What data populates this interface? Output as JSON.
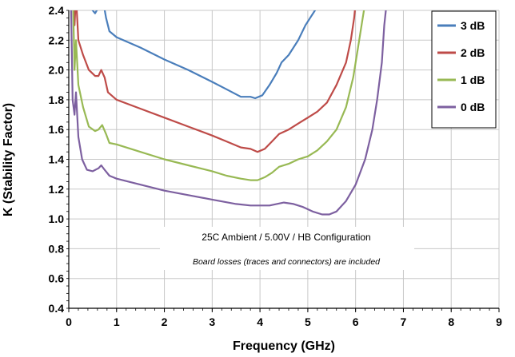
{
  "chart_data": {
    "type": "line",
    "title": "",
    "xlabel": "Frequency (GHz)",
    "ylabel": "K (Stability Factor)",
    "xlim": [
      0,
      9
    ],
    "ylim": [
      0.4,
      2.4
    ],
    "x_ticks": [
      0,
      1,
      2,
      3,
      4,
      5,
      6,
      7,
      8,
      9
    ],
    "y_ticks": [
      0.4,
      0.6,
      0.8,
      1.0,
      1.2,
      1.4,
      1.6,
      1.8,
      2.0,
      2.2,
      2.4
    ],
    "y_tick_labels": [
      "0.4",
      "0.6",
      "0.8",
      "1.0",
      "1.2",
      "1.4",
      "1.6",
      "1.8",
      "2.0",
      "2.2",
      "2.4"
    ],
    "grid": true,
    "legend_position": "top-right",
    "annotations": [
      "25C Ambient / 5.00V / HB Configuration",
      "Board losses (traces and connectors) are included"
    ],
    "series": [
      {
        "name": "3 dB",
        "color": "#4a7ebb",
        "points": [
          [
            0.05,
            2.4
          ],
          [
            0.08,
            2.6
          ],
          [
            0.12,
            2.45
          ],
          [
            0.15,
            2.6
          ],
          [
            0.2,
            2.5
          ],
          [
            0.3,
            2.45
          ],
          [
            0.45,
            2.42
          ],
          [
            0.55,
            2.38
          ],
          [
            0.62,
            2.42
          ],
          [
            0.7,
            2.5
          ],
          [
            0.78,
            2.35
          ],
          [
            0.85,
            2.26
          ],
          [
            1.0,
            2.22
          ],
          [
            1.5,
            2.15
          ],
          [
            2.0,
            2.07
          ],
          [
            2.5,
            2.0
          ],
          [
            3.0,
            1.92
          ],
          [
            3.3,
            1.87
          ],
          [
            3.6,
            1.82
          ],
          [
            3.8,
            1.82
          ],
          [
            3.9,
            1.81
          ],
          [
            4.05,
            1.83
          ],
          [
            4.2,
            1.9
          ],
          [
            4.35,
            1.98
          ],
          [
            4.45,
            2.05
          ],
          [
            4.6,
            2.1
          ],
          [
            4.8,
            2.2
          ],
          [
            4.95,
            2.3
          ],
          [
            5.05,
            2.35
          ],
          [
            5.15,
            2.4
          ],
          [
            5.25,
            2.48
          ]
        ]
      },
      {
        "name": "2 dB",
        "color": "#be4b48",
        "points": [
          [
            0.05,
            2.4
          ],
          [
            0.08,
            2.7
          ],
          [
            0.12,
            2.3
          ],
          [
            0.15,
            2.5
          ],
          [
            0.2,
            2.2
          ],
          [
            0.3,
            2.1
          ],
          [
            0.42,
            2.0
          ],
          [
            0.55,
            1.96
          ],
          [
            0.62,
            1.96
          ],
          [
            0.68,
            2.0
          ],
          [
            0.75,
            1.95
          ],
          [
            0.82,
            1.85
          ],
          [
            1.0,
            1.8
          ],
          [
            1.5,
            1.74
          ],
          [
            2.0,
            1.68
          ],
          [
            2.5,
            1.62
          ],
          [
            3.0,
            1.56
          ],
          [
            3.3,
            1.52
          ],
          [
            3.6,
            1.48
          ],
          [
            3.8,
            1.47
          ],
          [
            3.95,
            1.45
          ],
          [
            4.1,
            1.47
          ],
          [
            4.25,
            1.52
          ],
          [
            4.4,
            1.57
          ],
          [
            4.6,
            1.6
          ],
          [
            4.8,
            1.64
          ],
          [
            5.0,
            1.68
          ],
          [
            5.2,
            1.72
          ],
          [
            5.4,
            1.78
          ],
          [
            5.6,
            1.9
          ],
          [
            5.8,
            2.05
          ],
          [
            5.9,
            2.2
          ],
          [
            5.97,
            2.35
          ],
          [
            6.0,
            2.45
          ]
        ]
      },
      {
        "name": "1 dB",
        "color": "#98b954",
        "points": [
          [
            0.05,
            2.4
          ],
          [
            0.08,
            2.6
          ],
          [
            0.12,
            2.0
          ],
          [
            0.15,
            2.2
          ],
          [
            0.2,
            1.9
          ],
          [
            0.3,
            1.75
          ],
          [
            0.42,
            1.62
          ],
          [
            0.55,
            1.59
          ],
          [
            0.62,
            1.6
          ],
          [
            0.7,
            1.63
          ],
          [
            0.78,
            1.57
          ],
          [
            0.85,
            1.51
          ],
          [
            1.0,
            1.5
          ],
          [
            1.5,
            1.45
          ],
          [
            2.0,
            1.4
          ],
          [
            2.5,
            1.36
          ],
          [
            3.0,
            1.32
          ],
          [
            3.3,
            1.29
          ],
          [
            3.6,
            1.27
          ],
          [
            3.8,
            1.26
          ],
          [
            3.95,
            1.26
          ],
          [
            4.1,
            1.28
          ],
          [
            4.25,
            1.31
          ],
          [
            4.4,
            1.35
          ],
          [
            4.6,
            1.37
          ],
          [
            4.8,
            1.4
          ],
          [
            5.0,
            1.42
          ],
          [
            5.2,
            1.46
          ],
          [
            5.4,
            1.52
          ],
          [
            5.6,
            1.6
          ],
          [
            5.8,
            1.75
          ],
          [
            5.95,
            1.95
          ],
          [
            6.05,
            2.15
          ],
          [
            6.15,
            2.35
          ],
          [
            6.2,
            2.45
          ]
        ]
      },
      {
        "name": "0 dB",
        "color": "#7d60a0",
        "points": [
          [
            0.05,
            2.4
          ],
          [
            0.08,
            1.8
          ],
          [
            0.12,
            1.7
          ],
          [
            0.15,
            1.85
          ],
          [
            0.2,
            1.55
          ],
          [
            0.28,
            1.4
          ],
          [
            0.38,
            1.33
          ],
          [
            0.5,
            1.32
          ],
          [
            0.62,
            1.34
          ],
          [
            0.68,
            1.36
          ],
          [
            0.75,
            1.33
          ],
          [
            0.85,
            1.29
          ],
          [
            1.0,
            1.27
          ],
          [
            1.5,
            1.23
          ],
          [
            2.0,
            1.19
          ],
          [
            2.5,
            1.16
          ],
          [
            3.0,
            1.13
          ],
          [
            3.5,
            1.1
          ],
          [
            3.8,
            1.09
          ],
          [
            4.0,
            1.09
          ],
          [
            4.2,
            1.09
          ],
          [
            4.35,
            1.1
          ],
          [
            4.5,
            1.11
          ],
          [
            4.7,
            1.1
          ],
          [
            4.9,
            1.08
          ],
          [
            5.1,
            1.05
          ],
          [
            5.3,
            1.03
          ],
          [
            5.45,
            1.03
          ],
          [
            5.6,
            1.05
          ],
          [
            5.8,
            1.12
          ],
          [
            6.0,
            1.23
          ],
          [
            6.2,
            1.4
          ],
          [
            6.35,
            1.6
          ],
          [
            6.45,
            1.8
          ],
          [
            6.55,
            2.05
          ],
          [
            6.6,
            2.3
          ],
          [
            6.65,
            2.45
          ]
        ]
      }
    ]
  }
}
